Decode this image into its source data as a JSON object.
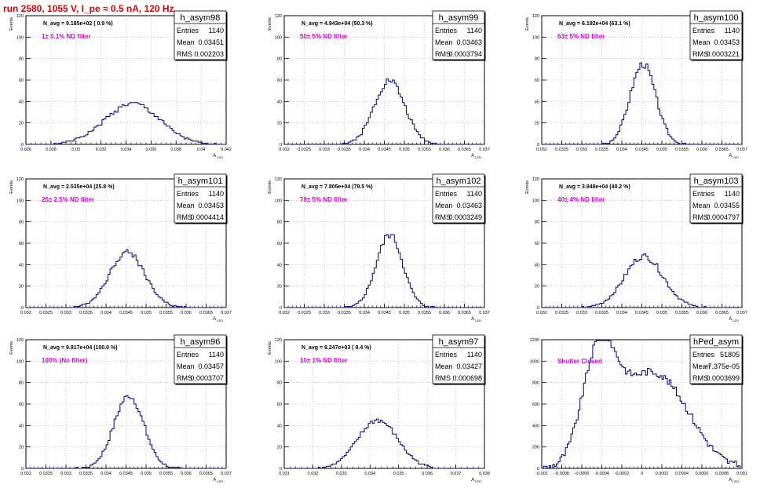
{
  "main_title": "run 2580,  1055 V, I_pe ≈ 0.5 nA, 120 Hz",
  "colors": {
    "title": "#e00000",
    "hist": "#000080",
    "annotation": "#e000e0",
    "grid": "#b0b0b0",
    "frame": "#000000"
  },
  "chart_data": [
    {
      "type": "bar",
      "title": "h_asym98",
      "stats": {
        "entries_label": "Entries",
        "entries": "1140",
        "mean_label": "Mean",
        "mean": "0.03451",
        "rms_label": "RMS",
        "rms": "0.002203"
      },
      "n_avg": "N_avg = 9.185e+02 ( 0.9 %)",
      "annotation": "1± 0.1% ND filter",
      "ylabel": "Events",
      "xlabel": "A_LED",
      "xlim": [
        0.026,
        0.042
      ],
      "ylim": [
        0,
        120
      ],
      "xticks": [
        "0.026",
        "0.028",
        "0.03",
        "0.032",
        "0.034",
        "0.036",
        "0.038",
        "0.04",
        "0.042"
      ],
      "yticks": [
        "0",
        "20",
        "40",
        "60",
        "80",
        "100",
        "120"
      ],
      "grid": true,
      "mean_value": 0.03451,
      "sigma": 0.0022,
      "peak": 38,
      "shape": "gauss",
      "seed": 1
    },
    {
      "type": "bar",
      "title": "h_asym99",
      "stats": {
        "entries_label": "Entries",
        "entries": "1140",
        "mean_label": "Mean",
        "mean": "0.03463",
        "rms_label": "RMS",
        "rms": "0.0003794"
      },
      "n_avg": "N_avg = 4.943e+04 (50.3 %)",
      "annotation": "50± 5% ND filter",
      "ylabel": "Events",
      "xlabel": "A_LED",
      "xlim": [
        0.032,
        0.037
      ],
      "ylim": [
        0,
        120
      ],
      "xticks": [
        "0.032",
        "0.0325",
        "0.033",
        "0.0335",
        "0.034",
        "0.0345",
        "0.035",
        "0.0355",
        "0.036",
        "0.0365",
        "0.037"
      ],
      "yticks": [
        "0",
        "20",
        "40",
        "60",
        "80",
        "100",
        "120"
      ],
      "grid": true,
      "mean_value": 0.03463,
      "sigma": 0.00038,
      "peak": 60,
      "shape": "gauss",
      "seed": 2
    },
    {
      "type": "bar",
      "title": "h_asym100",
      "stats": {
        "entries_label": "Entries",
        "entries": "1140",
        "mean_label": "Mean",
        "mean": "0.03453",
        "rms_label": "RMS",
        "rms": "0.0003221"
      },
      "n_avg": "N_avg = 6.192e+04 (63.1 %)",
      "annotation": "63± 5% ND filter",
      "ylabel": "Events",
      "xlabel": "A_LED",
      "xlim": [
        0.032,
        0.037
      ],
      "ylim": [
        0,
        120
      ],
      "xticks": [
        "0.032",
        "0.0325",
        "0.033",
        "0.0335",
        "0.034",
        "0.0345",
        "0.035",
        "0.0355",
        "0.036",
        "0.0365",
        "0.037"
      ],
      "yticks": [
        "0",
        "20",
        "40",
        "60",
        "80",
        "100",
        "120"
      ],
      "grid": true,
      "mean_value": 0.03453,
      "sigma": 0.00032,
      "peak": 75,
      "shape": "gauss",
      "seed": 3
    },
    {
      "type": "bar",
      "title": "h_asym101",
      "stats": {
        "entries_label": "Entries",
        "entries": "1140",
        "mean_label": "Mean",
        "mean": "0.03453",
        "rms_label": "RMS",
        "rms": "0.0004414"
      },
      "n_avg": "N_avg = 2.535e+04 (25.8 %)",
      "annotation": "25± 2.5% ND filter",
      "ylabel": "Events",
      "xlabel": "A_LED",
      "xlim": [
        0.032,
        0.037
      ],
      "ylim": [
        0,
        120
      ],
      "xticks": [
        "0.032",
        "0.0325",
        "0.033",
        "0.0335",
        "0.034",
        "0.0345",
        "0.035",
        "0.0355",
        "0.036",
        "0.0365",
        "0.037"
      ],
      "yticks": [
        "0",
        "20",
        "40",
        "60",
        "80",
        "100",
        "120"
      ],
      "grid": true,
      "mean_value": 0.03453,
      "sigma": 0.00044,
      "peak": 52,
      "shape": "gauss",
      "seed": 4
    },
    {
      "type": "bar",
      "title": "h_asym102",
      "stats": {
        "entries_label": "Entries",
        "entries": "1140",
        "mean_label": "Mean",
        "mean": "0.03463",
        "rms_label": "RMS",
        "rms": "0.0003249"
      },
      "n_avg": "N_avg = 7.805e+04 (79.5 %)",
      "annotation": "79± 5% ND filter",
      "ylabel": "Events",
      "xlabel": "A_LED",
      "xlim": [
        0.032,
        0.037
      ],
      "ylim": [
        0,
        120
      ],
      "xticks": [
        "0.032",
        "0.0325",
        "0.033",
        "0.0335",
        "0.034",
        "0.0345",
        "0.035",
        "0.0355",
        "0.036",
        "0.0365",
        "0.037"
      ],
      "yticks": [
        "0",
        "20",
        "40",
        "60",
        "80",
        "100",
        "120"
      ],
      "grid": true,
      "mean_value": 0.03463,
      "sigma": 0.00033,
      "peak": 68,
      "shape": "gauss",
      "seed": 5
    },
    {
      "type": "bar",
      "title": "h_asym103",
      "stats": {
        "entries_label": "Entries",
        "entries": "1140",
        "mean_label": "Mean",
        "mean": "0.03455",
        "rms_label": "RMS",
        "rms": "0.0004797"
      },
      "n_avg": "N_avg = 3.948e+04 (40.2 %)",
      "annotation": "40± 4% ND filter",
      "ylabel": "Events",
      "xlabel": "A_LED",
      "xlim": [
        0.032,
        0.037
      ],
      "ylim": [
        0,
        120
      ],
      "xticks": [
        "0.032",
        "0.0325",
        "0.033",
        "0.0335",
        "0.034",
        "0.0345",
        "0.035",
        "0.0355",
        "0.036",
        "0.0365",
        "0.037"
      ],
      "yticks": [
        "0",
        "20",
        "40",
        "60",
        "80",
        "100",
        "120"
      ],
      "grid": true,
      "mean_value": 0.03455,
      "sigma": 0.00048,
      "peak": 48,
      "shape": "gauss",
      "seed": 6
    },
    {
      "type": "bar",
      "title": "h_asym96",
      "stats": {
        "entries_label": "Entries",
        "entries": "1140",
        "mean_label": "Mean",
        "mean": "0.03457",
        "rms_label": "RMS",
        "rms": "0.0003707"
      },
      "n_avg": "N_avg = 9.817e+04 (100.0 %)",
      "annotation": "100% (No filter)",
      "ylabel": "Events",
      "xlabel": "A_LED",
      "xlim": [
        0.032,
        0.037
      ],
      "ylim": [
        0,
        120
      ],
      "xticks": [
        "0.032",
        "0.0325",
        "0.033",
        "0.0335",
        "0.034",
        "0.0345",
        "0.035",
        "0.0355",
        "0.036",
        "0.0365",
        "0.037"
      ],
      "yticks": [
        "0",
        "20",
        "40",
        "60",
        "80",
        "100",
        "120"
      ],
      "grid": true,
      "mean_value": 0.03457,
      "sigma": 0.00037,
      "peak": 68,
      "shape": "gauss",
      "seed": 7
    },
    {
      "type": "bar",
      "title": "h_asym97",
      "stats": {
        "entries_label": "Entries",
        "entries": "1140",
        "mean_label": "Mean",
        "mean": "0.03427",
        "rms_label": "RMS",
        "rms": "0.000698"
      },
      "n_avg": "N_avg = 9.247e+03 ( 9.4 %)",
      "annotation": "10± 1% ND filter",
      "ylabel": "Events",
      "xlabel": "A_LED",
      "xlim": [
        0.031,
        0.038
      ],
      "ylim": [
        0,
        120
      ],
      "xticks": [
        "0.031",
        "0.032",
        "0.033",
        "0.034",
        "0.035",
        "0.036",
        "0.037",
        "0.038"
      ],
      "yticks": [
        "0",
        "20",
        "40",
        "60",
        "80",
        "100",
        "120"
      ],
      "grid": true,
      "mean_value": 0.03427,
      "sigma": 0.0007,
      "peak": 45,
      "shape": "gauss",
      "seed": 8
    },
    {
      "type": "bar",
      "title": "hPed_asym",
      "stats": {
        "entries_label": "Entries",
        "entries": "51805",
        "mean_label": "Mean",
        "mean": "-7.375e-05",
        "rms_label": "RMS",
        "rms": "0.0003699"
      },
      "n_avg": "",
      "annotation": "Shutter Closed",
      "ylabel": "",
      "xlabel": "A_LED",
      "xlim": [
        -0.001,
        0.001
      ],
      "ylim": [
        0,
        1200
      ],
      "xticks": [
        "-0.001",
        "-0.0008",
        "-0.0006",
        "-0.0004",
        "-0.0002",
        "0",
        "0.0002",
        "0.0004",
        "0.0006",
        "0.0008",
        "0.001"
      ],
      "yticks": [
        "0",
        "200",
        "400",
        "600",
        "800",
        "1000",
        "1200"
      ],
      "grid": true,
      "shape": "double",
      "peak": 1130,
      "seed": 9
    }
  ]
}
